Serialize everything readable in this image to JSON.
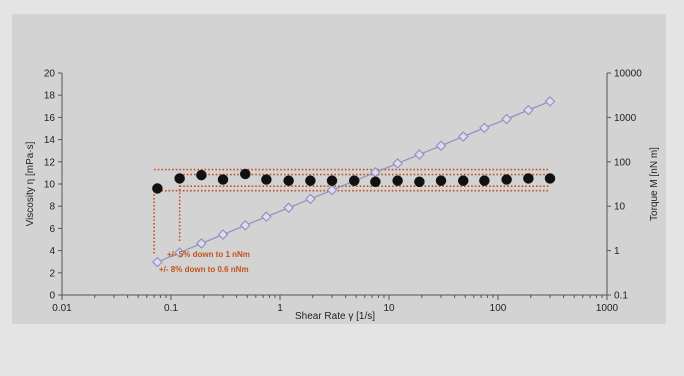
{
  "chart_data": {
    "type": "scatter",
    "xlabel": "Shear Rate γ [1/s]",
    "ylabel_left": "Viscosity η [mPa·s]",
    "ylabel_right": "Torque M [nN m]",
    "x_scale": "log",
    "xlim": [
      0.01,
      1000
    ],
    "ylim_left": [
      0,
      20
    ],
    "ylim_right_log": [
      0.1,
      10000
    ],
    "x_ticks": [
      "0.01",
      "0.1",
      "1",
      "10",
      "100",
      "1000"
    ],
    "y_left_ticks": [
      "0",
      "2",
      "4",
      "6",
      "8",
      "10",
      "12",
      "14",
      "16",
      "18",
      "20"
    ],
    "y_right_ticks": [
      "0.1",
      "1",
      "10",
      "100",
      "1000",
      "10000"
    ],
    "grid": false,
    "series": [
      {
        "marker": "filled-circle",
        "axis": "left",
        "color": "#111111",
        "x": [
          0.075,
          0.12,
          0.19,
          0.3,
          0.48,
          0.75,
          1.2,
          1.9,
          3.0,
          4.8,
          7.5,
          12,
          19,
          30,
          48,
          75,
          120,
          190,
          300
        ],
        "y": [
          9.6,
          10.5,
          10.8,
          10.4,
          10.9,
          10.4,
          10.3,
          10.3,
          10.3,
          10.3,
          10.2,
          10.3,
          10.2,
          10.3,
          10.3,
          10.3,
          10.4,
          10.5,
          10.5
        ]
      },
      {
        "marker": "open-diamond",
        "axis": "right",
        "color": "#8d8fbf",
        "x": [
          0.075,
          0.12,
          0.19,
          0.3,
          0.48,
          0.75,
          1.2,
          1.9,
          3.0,
          4.8,
          7.5,
          12,
          19,
          30,
          48,
          75,
          120,
          190,
          300
        ],
        "y": [
          0.55,
          0.9,
          1.45,
          2.3,
          3.7,
          5.8,
          9.2,
          14.6,
          23,
          37,
          58,
          92,
          146,
          230,
          370,
          580,
          920,
          1460,
          2300
        ]
      }
    ],
    "annotations": [
      {
        "text": "+/- 5% down to 1 nNm"
      },
      {
        "text": "+/- 8% down to 0.6 nNm"
      }
    ],
    "tolerance_bands": {
      "inner": {
        "x_start": 0.12,
        "x_end": 300,
        "y_low": 9.8,
        "y_high": 10.85
      },
      "outer": {
        "x_start": 0.07,
        "x_end": 300,
        "y_low": 9.4,
        "y_high": 11.3
      }
    }
  },
  "colors": {
    "background": "#e4e4e4",
    "panel": "#d3d3d3",
    "annotation": "#c4521d"
  }
}
